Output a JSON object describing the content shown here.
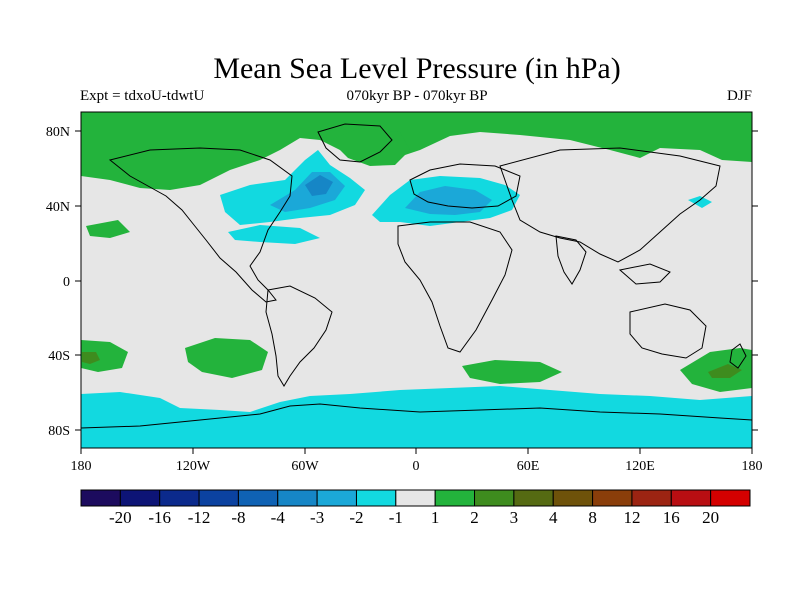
{
  "title": "Mean Sea Level Pressure (in hPa)",
  "left_subtitle": "Expt = tdxoU-tdwtU",
  "center_subtitle": "070kyr BP - 070kyr BP",
  "right_subtitle": "DJF",
  "lat_ticks": [
    "80N",
    "40N",
    "0",
    "40S",
    "80S"
  ],
  "lon_ticks": [
    "180",
    "120W",
    "60W",
    "0",
    "60E",
    "120E",
    "180"
  ],
  "colorbar": {
    "labels": [
      "-20",
      "-16",
      "-12",
      "-8",
      "-4",
      "-3",
      "-2",
      "-1",
      "1",
      "2",
      "3",
      "4",
      "8",
      "12",
      "16",
      "20"
    ],
    "colors": [
      "#1c0b5e",
      "#0d1476",
      "#0b2a8c",
      "#0b42a0",
      "#0f62b4",
      "#1686c6",
      "#1ba8d8",
      "#12d9e0",
      "#e6e6e6",
      "#23b33c",
      "#3e8c1e",
      "#556a12",
      "#6e520a",
      "#8a3e0a",
      "#9c2412",
      "#b80e12",
      "#d40000"
    ]
  },
  "colors": {
    "neutral": "#e6e6e6",
    "positive_1": "#23b33c",
    "positive_2": "#3e8c1e",
    "negative_1": "#12d9e0",
    "negative_2": "#1ba8d8",
    "negative_3": "#1686c6"
  }
}
